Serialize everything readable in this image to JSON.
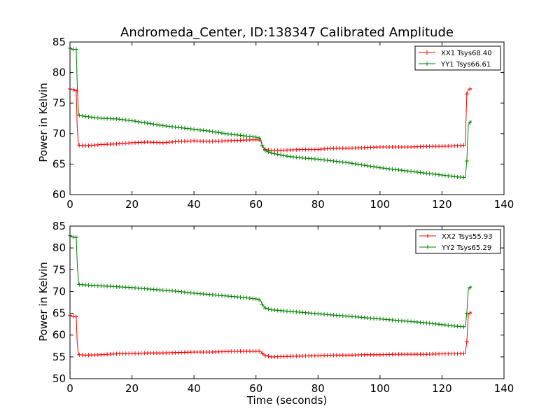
{
  "chart_data": [
    {
      "type": "line",
      "title": "Andromeda_Center, ID:138347 Calibrated Amplitude",
      "xlabel": "",
      "ylabel": "Power in Kelvin",
      "xlim": [
        0,
        140
      ],
      "ylim": [
        60,
        85
      ],
      "xticks": [
        "0",
        "20",
        "40",
        "60",
        "80",
        "100",
        "120",
        "140"
      ],
      "yticks": [
        "60",
        "65",
        "70",
        "75",
        "80",
        "85"
      ],
      "legend_position": "top-right",
      "marker": "plus",
      "series": [
        {
          "name": "XX1 Tsys68.40",
          "color": "#ff0000",
          "points": [
            [
              0,
              77.3
            ],
            [
              1,
              77.2
            ],
            [
              2,
              77.0
            ],
            [
              2.3,
              71.5
            ],
            [
              2.7,
              68.1
            ],
            [
              5,
              68.0
            ],
            [
              10,
              68.2
            ],
            [
              15,
              68.3
            ],
            [
              20,
              68.5
            ],
            [
              25,
              68.6
            ],
            [
              30,
              68.5
            ],
            [
              35,
              68.7
            ],
            [
              40,
              68.8
            ],
            [
              45,
              68.7
            ],
            [
              50,
              68.8
            ],
            [
              55,
              68.9
            ],
            [
              60,
              69.0
            ],
            [
              61.5,
              68.9
            ],
            [
              62,
              68.0
            ],
            [
              63,
              67.4
            ],
            [
              65,
              67.2
            ],
            [
              70,
              67.3
            ],
            [
              75,
              67.4
            ],
            [
              80,
              67.4
            ],
            [
              85,
              67.6
            ],
            [
              90,
              67.6
            ],
            [
              95,
              67.7
            ],
            [
              100,
              67.8
            ],
            [
              105,
              67.8
            ],
            [
              110,
              67.8
            ],
            [
              115,
              67.9
            ],
            [
              120,
              67.9
            ],
            [
              125,
              68.0
            ],
            [
              127.5,
              68.1
            ],
            [
              128,
              76.5
            ],
            [
              128.5,
              77.2
            ],
            [
              129.5,
              77.4
            ]
          ]
        },
        {
          "name": "YY1 Tsys66.61",
          "color": "#008000",
          "points": [
            [
              0,
              84.0
            ],
            [
              1,
              83.8
            ],
            [
              2,
              83.8
            ],
            [
              2.4,
              77.0
            ],
            [
              2.8,
              73.0
            ],
            [
              5,
              72.8
            ],
            [
              10,
              72.5
            ],
            [
              15,
              72.4
            ],
            [
              20,
              72.1
            ],
            [
              25,
              71.7
            ],
            [
              30,
              71.3
            ],
            [
              35,
              71.0
            ],
            [
              40,
              70.7
            ],
            [
              45,
              70.4
            ],
            [
              50,
              70.0
            ],
            [
              55,
              69.7
            ],
            [
              60,
              69.4
            ],
            [
              61.5,
              69.2
            ],
            [
              62,
              68.0
            ],
            [
              63,
              67.2
            ],
            [
              65,
              66.8
            ],
            [
              70,
              66.3
            ],
            [
              75,
              66.0
            ],
            [
              80,
              65.8
            ],
            [
              85,
              65.5
            ],
            [
              90,
              65.2
            ],
            [
              95,
              64.8
            ],
            [
              100,
              64.4
            ],
            [
              105,
              64.1
            ],
            [
              110,
              63.8
            ],
            [
              115,
              63.5
            ],
            [
              120,
              63.2
            ],
            [
              125,
              62.9
            ],
            [
              127.5,
              62.8
            ],
            [
              128,
              65.5
            ],
            [
              128.5,
              71.5
            ],
            [
              129.5,
              72.1
            ]
          ]
        }
      ]
    },
    {
      "type": "line",
      "title": "",
      "xlabel": "Time (seconds)",
      "ylabel": "Power in Kelvin",
      "xlim": [
        0,
        140
      ],
      "ylim": [
        50,
        85
      ],
      "xticks": [
        "0",
        "20",
        "40",
        "60",
        "80",
        "100",
        "120",
        "140"
      ],
      "yticks": [
        "50",
        "55",
        "60",
        "65",
        "70",
        "75",
        "80",
        "85"
      ],
      "legend_position": "top-right",
      "marker": "plus",
      "series": [
        {
          "name": "XX2 Tsys55.93",
          "color": "#ff0000",
          "points": [
            [
              0,
              64.5
            ],
            [
              1,
              64.3
            ],
            [
              2,
              64.2
            ],
            [
              2.3,
              58.5
            ],
            [
              2.7,
              55.5
            ],
            [
              5,
              55.4
            ],
            [
              10,
              55.5
            ],
            [
              15,
              55.7
            ],
            [
              20,
              55.8
            ],
            [
              25,
              55.9
            ],
            [
              30,
              55.9
            ],
            [
              35,
              56.0
            ],
            [
              40,
              56.1
            ],
            [
              45,
              56.1
            ],
            [
              50,
              56.2
            ],
            [
              55,
              56.3
            ],
            [
              60,
              56.3
            ],
            [
              61.5,
              56.3
            ],
            [
              62,
              55.8
            ],
            [
              63,
              55.3
            ],
            [
              65,
              55.0
            ],
            [
              70,
              55.1
            ],
            [
              75,
              55.2
            ],
            [
              80,
              55.3
            ],
            [
              85,
              55.4
            ],
            [
              90,
              55.4
            ],
            [
              95,
              55.5
            ],
            [
              100,
              55.5
            ],
            [
              105,
              55.6
            ],
            [
              110,
              55.6
            ],
            [
              115,
              55.6
            ],
            [
              120,
              55.7
            ],
            [
              125,
              55.7
            ],
            [
              127.5,
              55.8
            ],
            [
              128,
              58.5
            ],
            [
              128.5,
              64.8
            ],
            [
              129.5,
              65.3
            ]
          ]
        },
        {
          "name": "YY2 Tsys65.29",
          "color": "#008000",
          "points": [
            [
              0,
              82.8
            ],
            [
              1,
              82.5
            ],
            [
              2,
              82.4
            ],
            [
              2.4,
              75.5
            ],
            [
              2.8,
              71.6
            ],
            [
              5,
              71.5
            ],
            [
              10,
              71.3
            ],
            [
              15,
              71.1
            ],
            [
              20,
              70.9
            ],
            [
              25,
              70.6
            ],
            [
              30,
              70.3
            ],
            [
              35,
              70.0
            ],
            [
              40,
              69.6
            ],
            [
              45,
              69.3
            ],
            [
              50,
              69.0
            ],
            [
              55,
              68.7
            ],
            [
              60,
              68.3
            ],
            [
              61.5,
              68.0
            ],
            [
              62,
              67.0
            ],
            [
              63,
              66.2
            ],
            [
              65,
              65.8
            ],
            [
              70,
              65.5
            ],
            [
              75,
              65.2
            ],
            [
              80,
              64.9
            ],
            [
              85,
              64.6
            ],
            [
              90,
              64.3
            ],
            [
              95,
              64.0
            ],
            [
              100,
              63.7
            ],
            [
              105,
              63.4
            ],
            [
              110,
              63.1
            ],
            [
              115,
              62.8
            ],
            [
              120,
              62.4
            ],
            [
              125,
              62.0
            ],
            [
              127.5,
              61.9
            ],
            [
              128,
              65.0
            ],
            [
              128.5,
              70.6
            ],
            [
              129.5,
              71.2
            ]
          ]
        }
      ]
    }
  ]
}
